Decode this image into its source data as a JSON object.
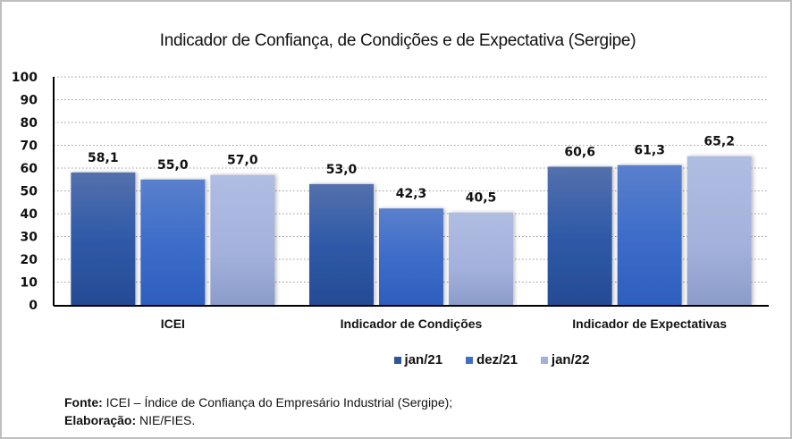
{
  "chart_data": {
    "type": "bar",
    "title": "Indicador de Confiança, de Condições e de Expectativa (Sergipe)",
    "xlabel": "",
    "ylabel": "",
    "ylim": [
      0,
      100
    ],
    "yticks": [
      0,
      10,
      20,
      30,
      40,
      50,
      60,
      70,
      80,
      90,
      100
    ],
    "grid": true,
    "legend_position": "bottom",
    "categories": [
      "ICEI",
      "Indicador de Condições",
      "Indicador de Expectativas"
    ],
    "series": [
      {
        "name": "jan/21",
        "color": "#2f559b",
        "values": [
          58.1,
          53.0,
          60.6
        ],
        "labels": [
          "58,1",
          "53,0",
          "60,6"
        ]
      },
      {
        "name": "dez/21",
        "color": "#3f6ec7",
        "values": [
          55.0,
          42.3,
          61.3
        ],
        "labels": [
          "55,0",
          "42,3",
          "61,3"
        ]
      },
      {
        "name": "jan/22",
        "color": "#a3b1da",
        "values": [
          57.0,
          40.5,
          65.2
        ],
        "labels": [
          "57,0",
          "40,5",
          "65,2"
        ]
      }
    ]
  },
  "footer": {
    "source_label": "Fonte:",
    "source_text": " ICEI – Índice de Confiança do Empresário Industrial (Sergipe);",
    "credit_label": "Elaboração:",
    "credit_text": " NIE/FIES."
  }
}
